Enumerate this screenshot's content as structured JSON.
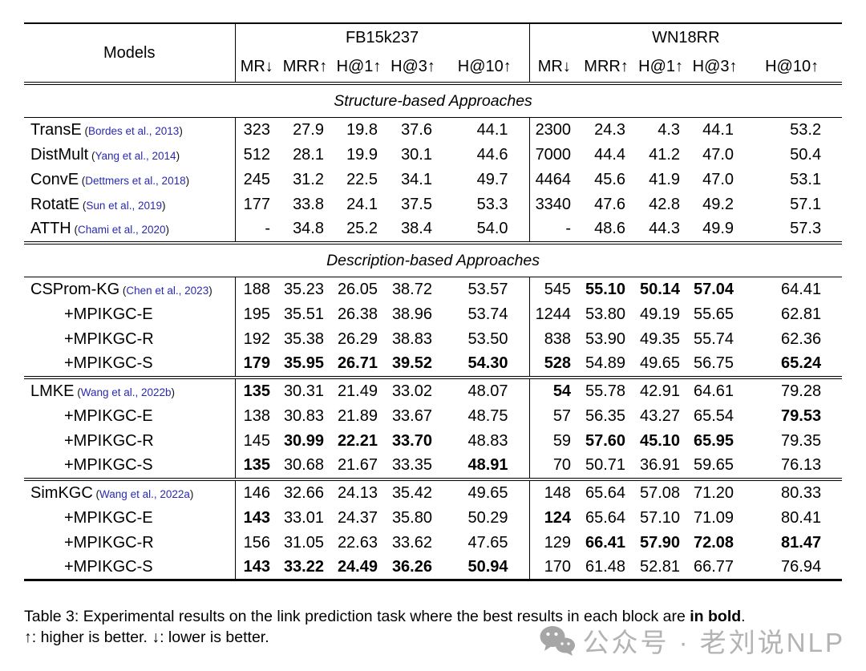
{
  "table": {
    "models_header": "Models",
    "col_groups": [
      {
        "label": "FB15k237"
      },
      {
        "label": "WN18RR"
      }
    ],
    "metric_headers": [
      "MR↓",
      "MRR↑",
      "H@1↑",
      "H@3↑",
      "H@10↑"
    ],
    "sections": [
      {
        "title": "Structure-based Approaches",
        "blocks": [
          {
            "rows": [
              {
                "model": "TransE",
                "cite": "Bordes et al., 2013",
                "indent": false,
                "fb": [
                  "323",
                  "27.9",
                  "19.8",
                  "37.6",
                  "44.1"
                ],
                "fb_bold": [
                  0,
                  0,
                  0,
                  0,
                  0
                ],
                "wn": [
                  "2300",
                  "24.3",
                  "4.3",
                  "44.1",
                  "53.2"
                ],
                "wn_bold": [
                  0,
                  0,
                  0,
                  0,
                  0
                ]
              },
              {
                "model": "DistMult",
                "cite": "Yang et al., 2014",
                "indent": false,
                "fb": [
                  "512",
                  "28.1",
                  "19.9",
                  "30.1",
                  "44.6"
                ],
                "fb_bold": [
                  0,
                  0,
                  0,
                  0,
                  0
                ],
                "wn": [
                  "7000",
                  "44.4",
                  "41.2",
                  "47.0",
                  "50.4"
                ],
                "wn_bold": [
                  0,
                  0,
                  0,
                  0,
                  0
                ]
              },
              {
                "model": "ConvE",
                "cite": "Dettmers et al., 2018",
                "indent": false,
                "fb": [
                  "245",
                  "31.2",
                  "22.5",
                  "34.1",
                  "49.7"
                ],
                "fb_bold": [
                  0,
                  0,
                  0,
                  0,
                  0
                ],
                "wn": [
                  "4464",
                  "45.6",
                  "41.9",
                  "47.0",
                  "53.1"
                ],
                "wn_bold": [
                  0,
                  0,
                  0,
                  0,
                  0
                ]
              },
              {
                "model": "RotatE",
                "cite": "Sun et al., 2019",
                "indent": false,
                "fb": [
                  "177",
                  "33.8",
                  "24.1",
                  "37.5",
                  "53.3"
                ],
                "fb_bold": [
                  0,
                  0,
                  0,
                  0,
                  0
                ],
                "wn": [
                  "3340",
                  "47.6",
                  "42.8",
                  "49.2",
                  "57.1"
                ],
                "wn_bold": [
                  0,
                  0,
                  0,
                  0,
                  0
                ]
              },
              {
                "model": "ATTH",
                "cite": "Chami et al., 2020",
                "indent": false,
                "fb": [
                  "-",
                  "34.8",
                  "25.2",
                  "38.4",
                  "54.0"
                ],
                "fb_bold": [
                  0,
                  0,
                  0,
                  0,
                  0
                ],
                "wn": [
                  "-",
                  "48.6",
                  "44.3",
                  "49.9",
                  "57.3"
                ],
                "wn_bold": [
                  0,
                  0,
                  0,
                  0,
                  0
                ]
              }
            ]
          }
        ]
      },
      {
        "title": "Description-based Approaches",
        "blocks": [
          {
            "rows": [
              {
                "model": "CSProm-KG",
                "cite": "Chen et al., 2023",
                "indent": false,
                "fb": [
                  "188",
                  "35.23",
                  "26.05",
                  "38.72",
                  "53.57"
                ],
                "fb_bold": [
                  0,
                  0,
                  0,
                  0,
                  0
                ],
                "wn": [
                  "545",
                  "55.10",
                  "50.14",
                  "57.04",
                  "64.41"
                ],
                "wn_bold": [
                  0,
                  1,
                  1,
                  1,
                  0
                ]
              },
              {
                "model": "+MPIKGC-E",
                "cite": null,
                "indent": true,
                "fb": [
                  "195",
                  "35.51",
                  "26.38",
                  "38.96",
                  "53.74"
                ],
                "fb_bold": [
                  0,
                  0,
                  0,
                  0,
                  0
                ],
                "wn": [
                  "1244",
                  "53.80",
                  "49.19",
                  "55.65",
                  "62.81"
                ],
                "wn_bold": [
                  0,
                  0,
                  0,
                  0,
                  0
                ]
              },
              {
                "model": "+MPIKGC-R",
                "cite": null,
                "indent": true,
                "fb": [
                  "192",
                  "35.38",
                  "26.29",
                  "38.83",
                  "53.50"
                ],
                "fb_bold": [
                  0,
                  0,
                  0,
                  0,
                  0
                ],
                "wn": [
                  "838",
                  "53.90",
                  "49.35",
                  "55.74",
                  "62.36"
                ],
                "wn_bold": [
                  0,
                  0,
                  0,
                  0,
                  0
                ]
              },
              {
                "model": "+MPIKGC-S",
                "cite": null,
                "indent": true,
                "fb": [
                  "179",
                  "35.95",
                  "26.71",
                  "39.52",
                  "54.30"
                ],
                "fb_bold": [
                  1,
                  1,
                  1,
                  1,
                  1
                ],
                "wn": [
                  "528",
                  "54.89",
                  "49.65",
                  "56.75",
                  "65.24"
                ],
                "wn_bold": [
                  1,
                  0,
                  0,
                  0,
                  1
                ]
              }
            ]
          },
          {
            "rows": [
              {
                "model": "LMKE",
                "cite": "Wang et al., 2022b",
                "indent": false,
                "fb": [
                  "135",
                  "30.31",
                  "21.49",
                  "33.02",
                  "48.07"
                ],
                "fb_bold": [
                  1,
                  0,
                  0,
                  0,
                  0
                ],
                "wn": [
                  "54",
                  "55.78",
                  "42.91",
                  "64.61",
                  "79.28"
                ],
                "wn_bold": [
                  1,
                  0,
                  0,
                  0,
                  0
                ]
              },
              {
                "model": "+MPIKGC-E",
                "cite": null,
                "indent": true,
                "fb": [
                  "138",
                  "30.83",
                  "21.89",
                  "33.67",
                  "48.75"
                ],
                "fb_bold": [
                  0,
                  0,
                  0,
                  0,
                  0
                ],
                "wn": [
                  "57",
                  "56.35",
                  "43.27",
                  "65.54",
                  "79.53"
                ],
                "wn_bold": [
                  0,
                  0,
                  0,
                  0,
                  1
                ]
              },
              {
                "model": "+MPIKGC-R",
                "cite": null,
                "indent": true,
                "fb": [
                  "145",
                  "30.99",
                  "22.21",
                  "33.70",
                  "48.83"
                ],
                "fb_bold": [
                  0,
                  1,
                  1,
                  1,
                  0
                ],
                "wn": [
                  "59",
                  "57.60",
                  "45.10",
                  "65.95",
                  "79.35"
                ],
                "wn_bold": [
                  0,
                  1,
                  1,
                  1,
                  0
                ]
              },
              {
                "model": "+MPIKGC-S",
                "cite": null,
                "indent": true,
                "fb": [
                  "135",
                  "30.68",
                  "21.67",
                  "33.35",
                  "48.91"
                ],
                "fb_bold": [
                  1,
                  0,
                  0,
                  0,
                  1
                ],
                "wn": [
                  "70",
                  "50.71",
                  "36.91",
                  "59.65",
                  "76.13"
                ],
                "wn_bold": [
                  0,
                  0,
                  0,
                  0,
                  0
                ]
              }
            ]
          },
          {
            "rows": [
              {
                "model": "SimKGC",
                "cite": "Wang et al., 2022a",
                "indent": false,
                "fb": [
                  "146",
                  "32.66",
                  "24.13",
                  "35.42",
                  "49.65"
                ],
                "fb_bold": [
                  0,
                  0,
                  0,
                  0,
                  0
                ],
                "wn": [
                  "148",
                  "65.64",
                  "57.08",
                  "71.20",
                  "80.33"
                ],
                "wn_bold": [
                  0,
                  0,
                  0,
                  0,
                  0
                ]
              },
              {
                "model": "+MPIKGC-E",
                "cite": null,
                "indent": true,
                "fb": [
                  "143",
                  "33.01",
                  "24.37",
                  "35.80",
                  "50.29"
                ],
                "fb_bold": [
                  1,
                  0,
                  0,
                  0,
                  0
                ],
                "wn": [
                  "124",
                  "65.64",
                  "57.10",
                  "71.09",
                  "80.41"
                ],
                "wn_bold": [
                  1,
                  0,
                  0,
                  0,
                  0
                ]
              },
              {
                "model": "+MPIKGC-R",
                "cite": null,
                "indent": true,
                "fb": [
                  "156",
                  "31.05",
                  "22.63",
                  "33.62",
                  "47.65"
                ],
                "fb_bold": [
                  0,
                  0,
                  0,
                  0,
                  0
                ],
                "wn": [
                  "129",
                  "66.41",
                  "57.90",
                  "72.08",
                  "81.47"
                ],
                "wn_bold": [
                  0,
                  1,
                  1,
                  1,
                  1
                ]
              },
              {
                "model": "+MPIKGC-S",
                "cite": null,
                "indent": true,
                "fb": [
                  "143",
                  "33.22",
                  "24.49",
                  "36.26",
                  "50.94"
                ],
                "fb_bold": [
                  1,
                  1,
                  1,
                  1,
                  1
                ],
                "wn": [
                  "170",
                  "61.48",
                  "52.81",
                  "66.77",
                  "76.94"
                ],
                "wn_bold": [
                  0,
                  0,
                  0,
                  0,
                  0
                ]
              }
            ]
          }
        ]
      }
    ]
  },
  "caption": {
    "line1_prefix": "Table 3: Experimental results on the link prediction task where the best results in each block are ",
    "line1_bold": "in bold",
    "line1_suffix": ".",
    "line2": "↑: higher is better. ↓: lower is better."
  },
  "watermark": {
    "icon": "wechat-icon",
    "text": "公众号 · 老刘说NLP"
  },
  "colors": {
    "citation_blue": "#2a2ab0",
    "watermark_gray": "#b3b3b3"
  }
}
